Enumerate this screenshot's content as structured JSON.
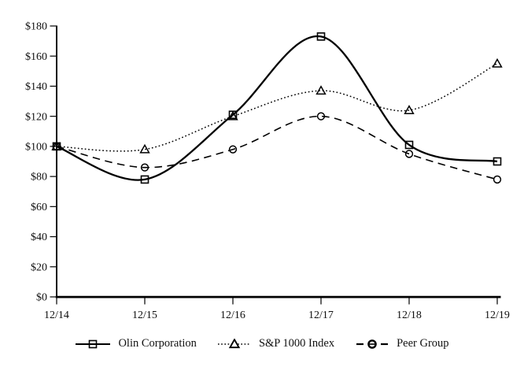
{
  "chart_data": {
    "type": "line",
    "title": "",
    "xlabel": "",
    "ylabel": "",
    "x_categories": [
      "12/14",
      "12/15",
      "12/16",
      "12/17",
      "12/18",
      "12/19"
    ],
    "y_axis": {
      "min": 0,
      "max": 180,
      "tick_step": 20,
      "tick_prefix": "$",
      "tick_labels": [
        "$0",
        "$20",
        "$40",
        "$60",
        "$80",
        "$100",
        "$120",
        "$140",
        "$160",
        "$180"
      ]
    },
    "grid": false,
    "legend_position": "bottom",
    "background_color": "#ffffff",
    "axis_color": "#000000",
    "series": [
      {
        "name": "Olin Corporation",
        "marker": "square",
        "line_style": "solid",
        "color": "#000000",
        "values": [
          100,
          78,
          121,
          173,
          101,
          90
        ]
      },
      {
        "name": "S&P 1000 Index",
        "marker": "triangle",
        "line_style": "dotted",
        "color": "#000000",
        "values": [
          100,
          98,
          120,
          137,
          124,
          155
        ]
      },
      {
        "name": "Peer Group",
        "marker": "circle",
        "line_style": "dashed",
        "color": "#000000",
        "values": [
          100,
          86,
          98,
          120,
          95,
          78
        ]
      }
    ]
  }
}
